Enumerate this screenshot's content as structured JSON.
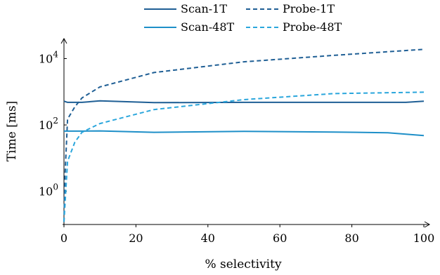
{
  "chart_data": {
    "type": "line",
    "xlabel": "% selectivity",
    "ylabel": "Time [ms]",
    "xlim": [
      0,
      100
    ],
    "ylim": [
      0.1,
      40000
    ],
    "x_scale": "linear",
    "y_scale": "log",
    "x_ticks": [
      0,
      20,
      40,
      60,
      80,
      100
    ],
    "y_ticks": [
      {
        "value": 1,
        "base": "10",
        "exp": "0"
      },
      {
        "value": 100,
        "base": "10",
        "exp": "2"
      },
      {
        "value": 10000,
        "base": "10",
        "exp": "4"
      }
    ],
    "grid": false,
    "legend_position": "top-center",
    "series": [
      {
        "name": "Scan-1T",
        "color": "#1f5f95",
        "dash": "solid",
        "points": [
          [
            0,
            520
          ],
          [
            1,
            480
          ],
          [
            5,
            480
          ],
          [
            10,
            530
          ],
          [
            25,
            470
          ],
          [
            50,
            480
          ],
          [
            75,
            480
          ],
          [
            95,
            480
          ],
          [
            100,
            520
          ]
        ]
      },
      {
        "name": "Probe-1T",
        "color": "#1f5f95",
        "dash": "dashed",
        "points": [
          [
            0,
            0.12
          ],
          [
            0.3,
            3
          ],
          [
            1,
            150
          ],
          [
            3,
            350
          ],
          [
            5,
            650
          ],
          [
            10,
            1400
          ],
          [
            25,
            3800
          ],
          [
            50,
            8000
          ],
          [
            75,
            12500
          ],
          [
            100,
            19000
          ]
        ]
      },
      {
        "name": "Scan-48T",
        "color": "#1e8fc8",
        "dash": "solid",
        "points": [
          [
            0,
            65
          ],
          [
            5,
            65
          ],
          [
            10,
            66
          ],
          [
            25,
            60
          ],
          [
            50,
            64
          ],
          [
            75,
            61
          ],
          [
            90,
            58
          ],
          [
            100,
            48
          ]
        ]
      },
      {
        "name": "Probe-48T",
        "color": "#2aa6dc",
        "dash": "dashed",
        "points": [
          [
            0,
            0.12
          ],
          [
            0.5,
            1
          ],
          [
            1,
            8
          ],
          [
            3,
            30
          ],
          [
            5,
            60
          ],
          [
            10,
            110
          ],
          [
            25,
            290
          ],
          [
            50,
            580
          ],
          [
            75,
            880
          ],
          [
            100,
            970
          ]
        ]
      }
    ]
  }
}
